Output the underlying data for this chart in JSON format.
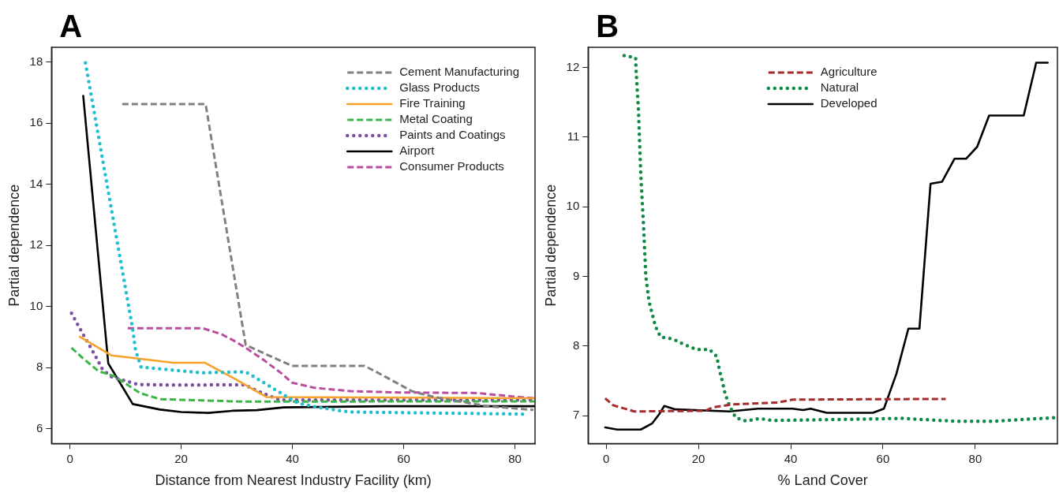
{
  "chart_data": [
    {
      "type": "line",
      "title": "A",
      "xlabel": "Distance from Nearest Industry Facility (km)",
      "ylabel": "Partial dependence",
      "xlim": [
        -3.3,
        83.6
      ],
      "ylim": [
        5.52,
        18.48
      ],
      "xticks": [
        0,
        20,
        40,
        60,
        80
      ],
      "yticks": [
        6,
        8,
        10,
        12,
        14,
        16,
        18
      ],
      "grid": false,
      "legend": "top right",
      "marker": "none",
      "series": [
        {
          "name": "Cement Manufacturing",
          "color": "#808080",
          "line_style": "dashed",
          "x": [
            9.4,
            24.4,
            31.6,
            39.9,
            52.9,
            54.8,
            61.6,
            65.5,
            75,
            83.3
          ],
          "values": [
            16.62,
            16.62,
            8.74,
            8.06,
            8.06,
            7.89,
            7.22,
            7.04,
            6.74,
            6.62
          ]
        },
        {
          "name": "Glass Products",
          "color": "#1fbfcf",
          "line_style": "dotted",
          "x": [
            2.8,
            11.3,
            11.8,
            12.8,
            23.9,
            29.7,
            31.6,
            33.1,
            36.2,
            37.9,
            41.1,
            44.7,
            50.2,
            81.9
          ],
          "values": [
            17.97,
            9.25,
            8.57,
            8.02,
            7.83,
            7.86,
            7.86,
            7.7,
            7.36,
            7.17,
            6.83,
            6.7,
            6.55,
            6.48
          ]
        },
        {
          "name": "Fire Training",
          "color": "#f7a128",
          "line_style": "solid",
          "x": [
            1.8,
            7.5,
            18.6,
            24.3,
            29.7,
            35.3,
            83.5
          ],
          "values": [
            9.01,
            8.4,
            8.16,
            8.16,
            7.63,
            7.04,
            7.0
          ]
        },
        {
          "name": "Metal Coating",
          "color": "#3cb44a",
          "line_style": "dashed",
          "x": [
            0.3,
            2.2,
            5.1,
            8,
            12.6,
            16.2,
            31.2,
            83.5
          ],
          "values": [
            8.65,
            8.33,
            7.89,
            7.72,
            7.17,
            6.97,
            6.89,
            6.9
          ]
        },
        {
          "name": "Paints and Coatings",
          "color": "#7b4fa5",
          "line_style": "dotted",
          "x": [
            0.3,
            1.4,
            2.5,
            3.7,
            4.8,
            5.9,
            7.6,
            10,
            12.3,
            19.5,
            29,
            31.4,
            33.6,
            35.8,
            37.9,
            83.5
          ],
          "values": [
            9.78,
            9.41,
            9.05,
            8.67,
            8.31,
            7.93,
            7.69,
            7.57,
            7.45,
            7.43,
            7.44,
            7.44,
            7.25,
            7.08,
            6.94,
            6.94
          ]
        },
        {
          "name": "Airport",
          "color": "#000000",
          "line_style": "solid",
          "x": [
            2.4,
            6.9,
            7.6,
            11.3,
            16.2,
            20,
            24.9,
            29.2,
            33.6,
            38.4,
            56.8,
            83.6
          ],
          "values": [
            16.89,
            8.14,
            7.93,
            6.81,
            6.63,
            6.55,
            6.52,
            6.59,
            6.61,
            6.7,
            6.74,
            6.74
          ]
        },
        {
          "name": "Consumer Products",
          "color": "#b84da0",
          "line_style": "dashed",
          "x": [
            10.4,
            23.9,
            27.3,
            29.5,
            31.6,
            35,
            38.2,
            39.9,
            44,
            50.5,
            59.2,
            73.2,
            76.6,
            83.3
          ],
          "values": [
            9.29,
            9.29,
            9.09,
            8.88,
            8.65,
            8.23,
            7.79,
            7.51,
            7.34,
            7.23,
            7.19,
            7.17,
            7.11,
            7.0
          ]
        }
      ]
    },
    {
      "type": "line",
      "title": "B",
      "xlabel": "% Land Cover",
      "ylabel": "Partial dependence",
      "xlim": [
        -3.9,
        97.8
      ],
      "ylim": [
        6.6,
        12.29
      ],
      "xticks": [
        0,
        20,
        40,
        60,
        80
      ],
      "yticks": [
        7,
        8,
        9,
        10,
        11,
        12
      ],
      "grid": false,
      "legend": "top",
      "marker": "none",
      "series": [
        {
          "name": "Agriculture",
          "color": "#a52a2a",
          "line_style": "dashed",
          "x": [
            -0.2,
            1.5,
            6.1,
            21.5,
            23.2,
            27.2,
            37.4,
            40.4,
            73.6
          ],
          "values": [
            7.25,
            7.15,
            7.06,
            7.07,
            7.12,
            7.16,
            7.19,
            7.23,
            7.24
          ]
        },
        {
          "name": "Natural",
          "color": "#0e8a44",
          "line_style": "dotted",
          "x": [
            3.9,
            6.4,
            6.5,
            7.0,
            7.5,
            8.1,
            8.6,
            9.3,
            10,
            10.7,
            11.8,
            14.5,
            17,
            19.5,
            22.4,
            24,
            24.5,
            25.2,
            25.8,
            26.8,
            28.1,
            30.4,
            33.2,
            36,
            64.2,
            75.5,
            83.9,
            97
          ],
          "values": [
            12.17,
            12.14,
            11.95,
            11.4,
            10.48,
            9.74,
            9.0,
            8.64,
            8.46,
            8.28,
            8.13,
            8.1,
            8.02,
            7.95,
            7.95,
            7.85,
            7.67,
            7.49,
            7.31,
            7.13,
            6.97,
            6.92,
            6.96,
            6.93,
            6.96,
            6.92,
            6.92,
            6.97
          ]
        },
        {
          "name": "Developed",
          "color": "#000000",
          "line_style": "solid",
          "x": [
            -0.2,
            2.4,
            7.5,
            10,
            11.5,
            12.6,
            15,
            26.7,
            32.9,
            40.4,
            42.7,
            44.3,
            47.8,
            57.8,
            60.2,
            62.9,
            65.5,
            67.9,
            70.3,
            72.8,
            75.5,
            78,
            80.4,
            83,
            90.5,
            93.2,
            95.7
          ],
          "values": [
            6.83,
            6.8,
            6.8,
            6.89,
            7.02,
            7.14,
            7.09,
            7.06,
            7.1,
            7.1,
            7.08,
            7.1,
            7.04,
            7.04,
            7.1,
            7.6,
            8.25,
            8.25,
            10.33,
            10.36,
            10.69,
            10.69,
            10.86,
            11.31,
            11.31,
            12.07,
            12.07
          ]
        }
      ]
    }
  ]
}
